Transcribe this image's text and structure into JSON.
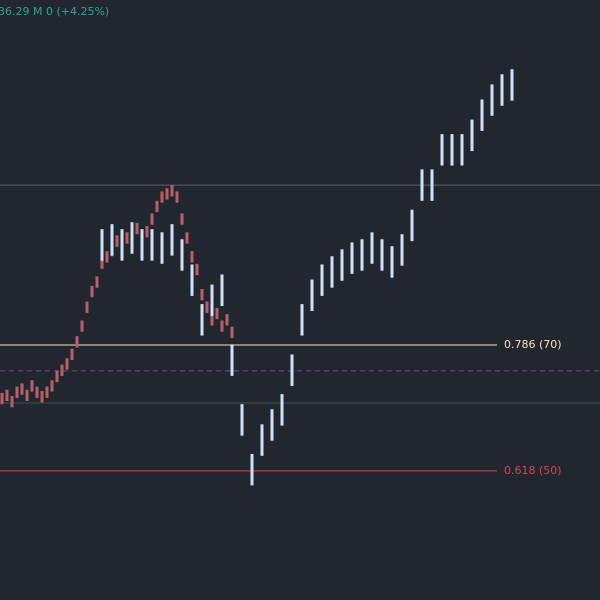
{
  "chart_data": {
    "type": "ohlc",
    "header": "36.29 M  0 (+4.25%)",
    "header_color": "#26a69a",
    "background": "#22262f",
    "xlim": [
      -0.4,
      119.6
    ],
    "ylim": [
      29.5,
      124.8
    ],
    "levels": [
      {
        "value": 95.4,
        "color": "#5d6270"
      },
      {
        "value": 70,
        "color": "#f0e6b8",
        "label": "0.786 (70)"
      },
      {
        "value": 65.9,
        "color": "#7b4a8c",
        "dashed": true
      },
      {
        "value": 60.8,
        "color": "#2f5a58"
      },
      {
        "value": 50,
        "color": "#d9454f",
        "label": "0.618 (50)"
      }
    ],
    "series": [
      {
        "color": "#b8606a",
        "x": [
          0,
          1,
          2,
          3,
          4,
          5,
          6,
          7,
          8,
          9,
          10,
          11,
          12,
          13,
          14,
          15,
          16,
          17,
          18,
          19,
          20,
          21,
          22,
          23,
          24,
          25,
          26,
          27,
          28,
          29,
          30,
          31,
          32,
          33,
          34,
          35,
          36,
          37,
          38,
          39,
          40,
          41,
          42,
          43,
          44,
          45,
          46
        ],
        "high": [
          62.4,
          62.9,
          61.9,
          63.4,
          63.9,
          62.9,
          64.4,
          63.4,
          62.7,
          63.4,
          64.4,
          65.9,
          66.9,
          67.9,
          69.4,
          71.4,
          73.9,
          76.9,
          79.4,
          80.9,
          83.9,
          84.9,
          85.9,
          87.4,
          86.4,
          87.9,
          88.9,
          89.4,
          88.4,
          88.9,
          90.9,
          92.9,
          94.4,
          94.9,
          95.4,
          94.4,
          90.9,
          87.9,
          84.9,
          82.9,
          78.9,
          76.9,
          74.9,
          75.9,
          73.9,
          74.9,
          72.9
        ],
        "low": [
          60.6,
          61.1,
          60.1,
          61.6,
          62.1,
          61.1,
          62.6,
          61.6,
          60.9,
          61.6,
          62.6,
          64.1,
          65.1,
          66.1,
          67.6,
          69.6,
          72.1,
          75.1,
          77.6,
          79.1,
          82.1,
          83.1,
          84.1,
          85.6,
          84.6,
          86.1,
          87.1,
          87.6,
          86.6,
          87.1,
          89.1,
          91.1,
          92.6,
          93.1,
          93.6,
          92.6,
          89.1,
          86.1,
          83.1,
          81.1,
          77.1,
          75.1,
          73.1,
          74.1,
          72.1,
          73.1,
          71.1
        ]
      },
      {
        "color": "#cfe0f7",
        "x": [
          20,
          22,
          24,
          26,
          28,
          30,
          32,
          34,
          36,
          38,
          40,
          42,
          44,
          46,
          48,
          50,
          52,
          54,
          56,
          58,
          60,
          62,
          64,
          66,
          68,
          70,
          72,
          74,
          76,
          78,
          80,
          82,
          84,
          86,
          88,
          90,
          92,
          94,
          96,
          98,
          100,
          102
        ],
        "high": [
          88.4,
          89.2,
          88.4,
          89.5,
          88.4,
          88.4,
          87.9,
          89.2,
          86.8,
          82.8,
          76.5,
          79.6,
          81.2,
          70.1,
          60.6,
          52.7,
          57.4,
          59.8,
          62.2,
          68.5,
          76.5,
          80.4,
          82.8,
          84.1,
          85.2,
          86.3,
          86.8,
          87.9,
          86.8,
          85.7,
          87.6,
          91.5,
          97.9,
          97.9,
          103.5,
          103.5,
          103.5,
          105.8,
          109,
          111.4,
          113,
          113.8
        ],
        "low": [
          83.4,
          84.2,
          83.4,
          84.5,
          83.4,
          83.4,
          82.9,
          84.2,
          81.8,
          77.8,
          71.5,
          74.6,
          76.2,
          65.1,
          55.6,
          47.7,
          52.4,
          54.8,
          57.2,
          63.5,
          71.5,
          75.4,
          77.8,
          79.1,
          80.2,
          81.3,
          81.8,
          82.9,
          81.8,
          80.7,
          82.6,
          86.5,
          92.9,
          92.9,
          98.5,
          98.5,
          98.5,
          100.8,
          104,
          106.4,
          108,
          108.8
        ]
      }
    ]
  }
}
